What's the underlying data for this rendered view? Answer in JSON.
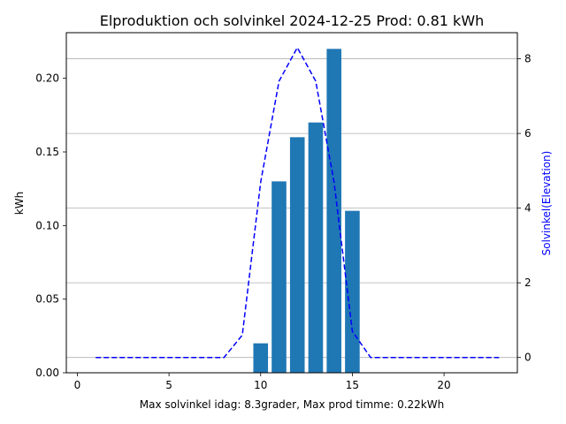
{
  "chart_data": {
    "type": "bar",
    "title": "Elproduktion och solvinkel 2024-12-25 Prod: 0.81 kWh",
    "xlabel": "Max solvinkel idag: 8.3grader, Max prod timme: 0.22kWh",
    "ylabel": "kWh",
    "y2label": "Solvinkel(Elevation)",
    "xlim": [
      -0.6,
      24
    ],
    "ylim": [
      0,
      0.231
    ],
    "y2lim": [
      -0.41,
      8.7
    ],
    "x_ticks": [
      0,
      5,
      10,
      15,
      20
    ],
    "x_tick_labels": [
      "0",
      "5",
      "10",
      "15",
      "20"
    ],
    "y_ticks": [
      0.0,
      0.05,
      0.1,
      0.15,
      0.2
    ],
    "y_tick_labels": [
      "0.00",
      "0.05",
      "0.10",
      "0.15",
      "0.20"
    ],
    "y2_ticks": [
      0,
      2,
      4,
      6,
      8
    ],
    "y2_tick_labels": [
      "0",
      "2",
      "4",
      "6",
      "8"
    ],
    "grid": "horizontal, right axis",
    "bars": {
      "color": "#1f77b4",
      "x": [
        10,
        11,
        12,
        13,
        14,
        15
      ],
      "values": [
        0.02,
        0.13,
        0.16,
        0.17,
        0.22,
        0.11
      ]
    },
    "line": {
      "color": "#0000ff",
      "style": "dashed",
      "axis": "right",
      "x": [
        1,
        2,
        3,
        4,
        5,
        6,
        7,
        8,
        9,
        10,
        11,
        12,
        13,
        14,
        15,
        16,
        17,
        18,
        19,
        20,
        21,
        22,
        23
      ],
      "values": [
        0,
        0,
        0,
        0,
        0,
        0,
        0,
        0,
        0.6,
        4.7,
        7.4,
        8.3,
        7.4,
        4.7,
        0.7,
        0,
        0,
        0,
        0,
        0,
        0,
        0,
        0
      ]
    }
  }
}
